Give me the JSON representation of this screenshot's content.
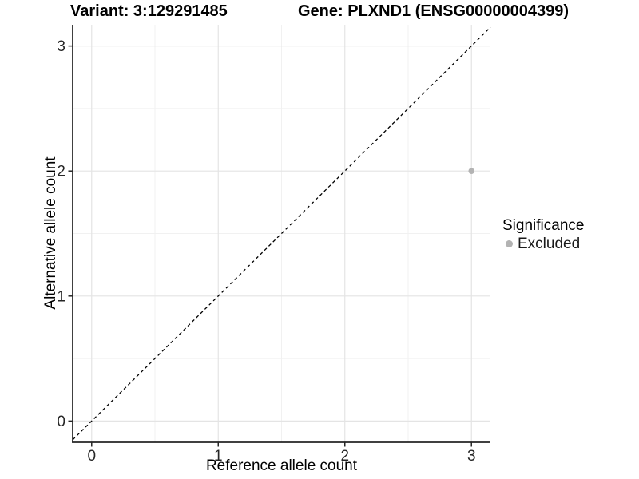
{
  "chart_data": {
    "type": "scatter",
    "title_left": "Variant: 3:129291485",
    "title_right": "Gene: PLXND1 (ENSG00000004399)",
    "xlabel": "Reference allele count",
    "ylabel": "Alternative allele count",
    "xlim": [
      -0.15,
      3.15
    ],
    "ylim": [
      -0.17,
      3.17
    ],
    "xticks": [
      0,
      1,
      2,
      3
    ],
    "yticks": [
      0,
      1,
      2,
      3
    ],
    "grid": "major+minor",
    "legend_position": "right",
    "series": [
      {
        "name": "Excluded",
        "marker": "circle",
        "color": "#b3b3b3",
        "points": [
          {
            "x": 3,
            "y": 2
          }
        ]
      }
    ],
    "reference_line": {
      "type": "identity-y-equals-x",
      "style": "dashed",
      "color": "#000000"
    },
    "legend": {
      "title": "Significance",
      "items": [
        {
          "label": "Excluded",
          "color": "#b3b3b3",
          "marker": "circle"
        }
      ]
    },
    "colors": {
      "background": "#ffffff",
      "grid_major": "#e4e4e4",
      "grid_minor": "#f1f1f1",
      "axis_line": "#000000",
      "tick_text": "#262626",
      "point": "#b3b3b3"
    }
  }
}
